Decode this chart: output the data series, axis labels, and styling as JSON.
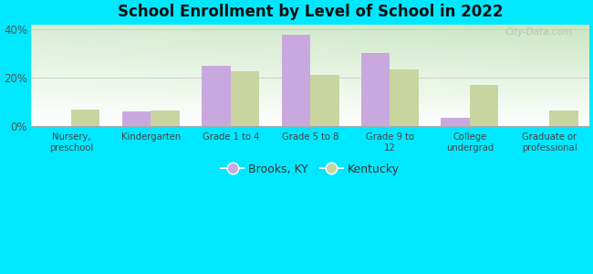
{
  "title": "School Enrollment by Level of School in 2022",
  "categories": [
    "Nursery,\npreschool",
    "Kindergarten",
    "Grade 1 to 4",
    "Grade 5 to 8",
    "Grade 9 to\n12",
    "College\nundergrad",
    "Graduate or\nprofessional"
  ],
  "brooks_values": [
    0.0,
    6.0,
    25.0,
    37.5,
    30.0,
    3.5,
    0.0
  ],
  "kentucky_values": [
    7.0,
    6.5,
    22.5,
    21.0,
    23.5,
    17.0,
    6.5
  ],
  "brooks_color": "#c9a8e0",
  "kentucky_color": "#c8d5a0",
  "background_outer": "#00e8ff",
  "ylim": [
    0,
    42
  ],
  "yticks": [
    0,
    20,
    40
  ],
  "ytick_labels": [
    "0%",
    "20%",
    "40%"
  ],
  "legend_labels": [
    "Brooks, KY",
    "Kentucky"
  ],
  "watermark": "City-Data.com",
  "bar_width": 0.36
}
